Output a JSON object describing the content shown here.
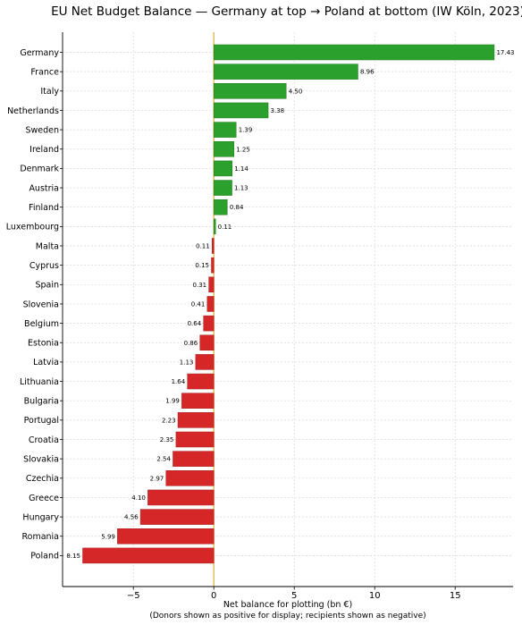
{
  "chart_data": {
    "type": "bar",
    "orientation": "horizontal",
    "title": "EU Net Budget Balance — Germany at top → Poland at bottom (IW Köln, 2023)",
    "xlabel": "Net balance for plotting (bn €)",
    "xlabel_note": "(Donors shown as positive for display; recipients shown as negative)",
    "ylabel": "",
    "xlim": [
      -9.4,
      18.6
    ],
    "x_ticks": [
      -5,
      0,
      5,
      10,
      15
    ],
    "x_tick_labels": [
      "−5",
      "0",
      "5",
      "10",
      "15"
    ],
    "grid": true,
    "categories": [
      "Germany",
      "France",
      "Italy",
      "Netherlands",
      "Sweden",
      "Ireland",
      "Denmark",
      "Austria",
      "Finland",
      "Luxembourg",
      "Malta",
      "Cyprus",
      "Spain",
      "Slovenia",
      "Belgium",
      "Estonia",
      "Latvia",
      "Lithuania",
      "Bulgaria",
      "Portugal",
      "Croatia",
      "Slovakia",
      "Czechia",
      "Greece",
      "Hungary",
      "Romania",
      "Poland"
    ],
    "values": [
      17.43,
      8.96,
      4.5,
      3.38,
      1.39,
      1.25,
      1.14,
      1.13,
      0.84,
      0.11,
      -0.11,
      -0.15,
      -0.31,
      -0.41,
      -0.64,
      -0.86,
      -1.13,
      -1.64,
      -1.99,
      -2.23,
      -2.35,
      -2.54,
      -2.97,
      -4.1,
      -4.56,
      -5.99,
      -8.15
    ],
    "data_labels": [
      "17.43",
      "8.96",
      "4.50",
      "3.38",
      "1.39",
      "1.25",
      "1.14",
      "1.13",
      "0.84",
      "0.11",
      "0.11",
      "0.15",
      "0.31",
      "0.41",
      "0.64",
      "0.86",
      "1.13",
      "1.64",
      "1.99",
      "2.23",
      "2.35",
      "2.54",
      "2.97",
      "4.10",
      "4.56",
      "5.99",
      "8.15"
    ],
    "colors": {
      "positive": "#2ca02c",
      "negative": "#d62728",
      "zero_line": "#e0b030"
    }
  }
}
